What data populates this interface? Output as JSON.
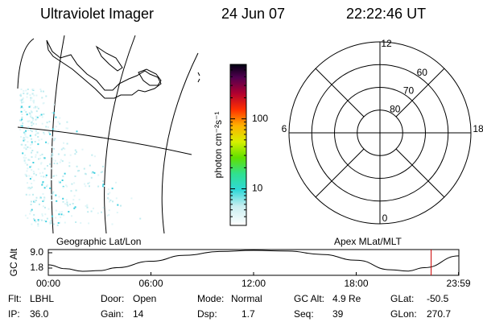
{
  "header": {
    "title": "Ultraviolet Imager",
    "date": "24 Jun 07",
    "time": "22:22:46 UT"
  },
  "map": {
    "label": "Geographic Lat/Lon"
  },
  "colorbar": {
    "label": "photon cm⁻²s⁻¹",
    "lim": [
      3,
      600
    ],
    "log": true,
    "ticks": [
      10,
      100
    ],
    "minor_ticks": [
      4,
      5,
      6,
      7,
      8,
      9,
      20,
      30,
      40,
      50,
      60,
      70,
      80,
      90,
      200,
      300,
      400,
      500
    ]
  },
  "polar": {
    "label": "Apex MLat/MLT",
    "outer_lat": 50,
    "rings": [
      60,
      70,
      80
    ],
    "mlt_labels": [
      12,
      6,
      18,
      0
    ]
  },
  "altitude": {
    "type": "line",
    "ylabel": "GC Alt",
    "ylim": [
      -1.6,
      10.5
    ],
    "xlim": [
      0,
      24
    ],
    "yticks": [
      {
        "value": 9.0,
        "label": "9.0"
      },
      1.8
    ],
    "xticks": [
      {
        "value": 0,
        "label": "00:00"
      },
      {
        "value": 6,
        "label": "06:00"
      },
      {
        "value": 12,
        "label": "12:00"
      },
      {
        "value": 18,
        "label": "18:00"
      },
      {
        "value": 23.98,
        "label": "23:59"
      }
    ],
    "hours": [
      0,
      1,
      2,
      3,
      4,
      6,
      8,
      10,
      12,
      14,
      16,
      18,
      20,
      21,
      22,
      24
    ],
    "values": [
      3.3,
      1.5,
      0.3,
      0.6,
      2.0,
      5.0,
      7.8,
      9.6,
      10.1,
      9.8,
      8.2,
      5.5,
      1.0,
      0.4,
      2.0,
      7.5
    ],
    "color": "#000000",
    "marker_hour": 22.38,
    "marker_color": "#cc0000"
  },
  "footer": [
    [
      {
        "key": "Flt:",
        "value": "LBHL"
      },
      {
        "key": "Door:",
        "value": "Open"
      },
      {
        "key": "Mode:",
        "value": "Normal"
      },
      {
        "key": "GC Alt:",
        "value": "4.9 Re"
      },
      {
        "key": "GLat:",
        "value": "-50.5"
      }
    ],
    [
      {
        "key": "IP:",
        "value": "36.0"
      },
      {
        "key": "Gain:",
        "value": "14"
      },
      {
        "key": "Dsp:",
        "value": "1.7"
      },
      {
        "key": "Seq:",
        "value": "39"
      },
      {
        "key": "GLon:",
        "value": "270.7"
      }
    ]
  ]
}
